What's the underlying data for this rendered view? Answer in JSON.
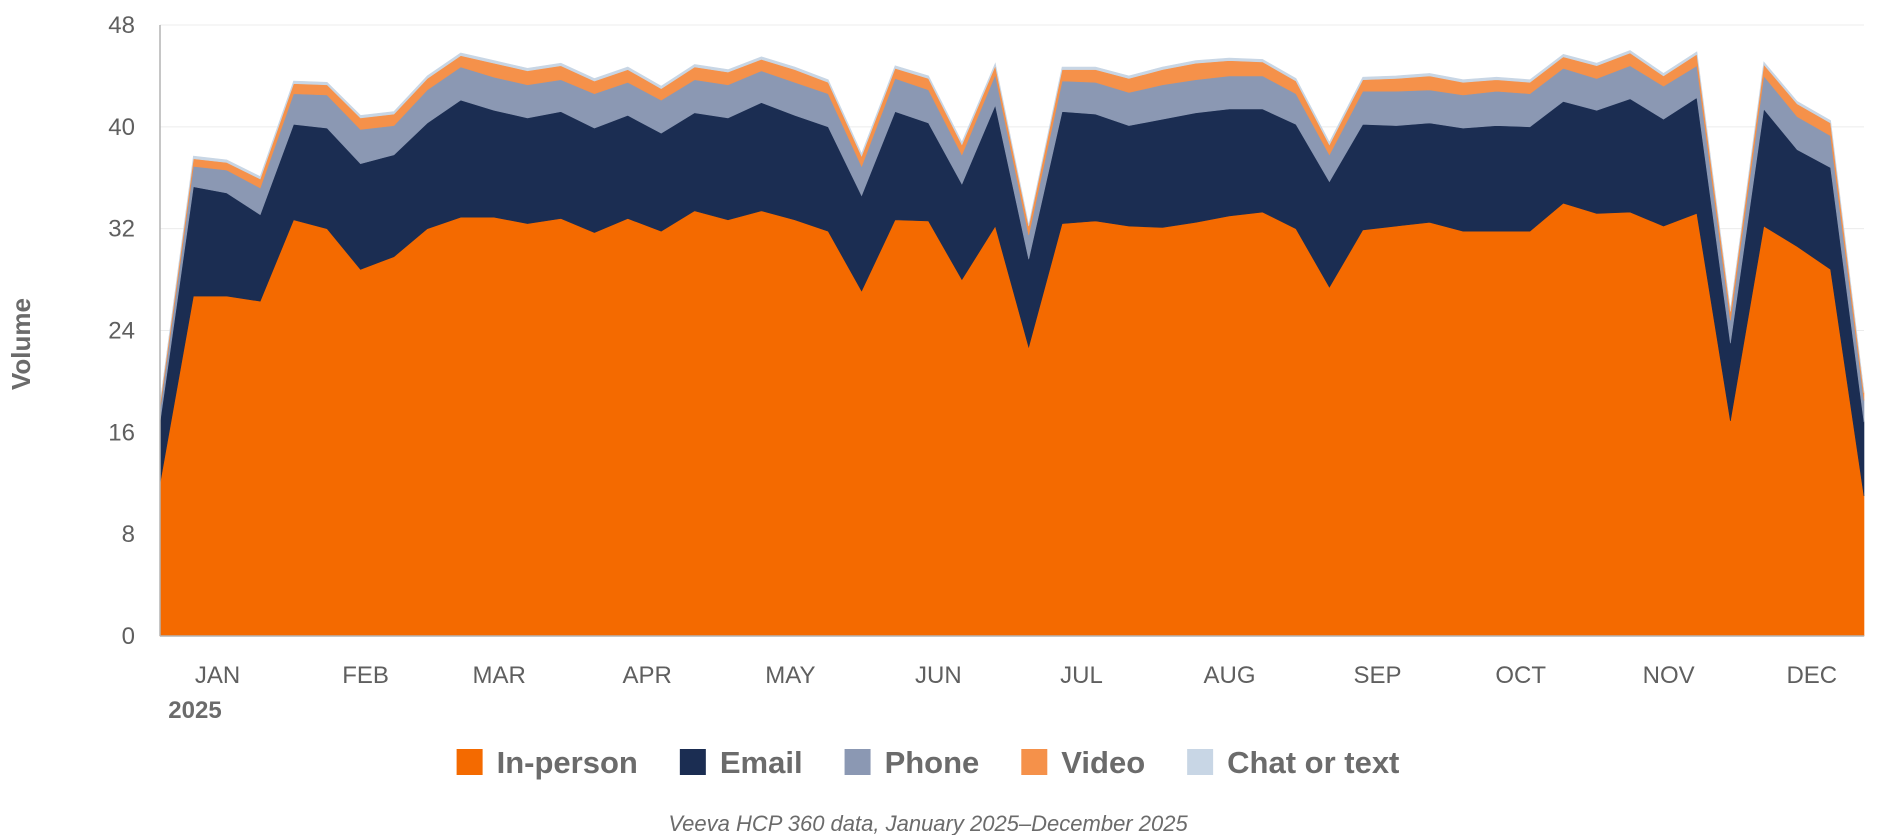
{
  "chart_data": {
    "type": "area",
    "stacked": true,
    "ylabel": "Volume",
    "xlabel": "",
    "ylim": [
      0,
      48
    ],
    "yticks": [
      0,
      8,
      16,
      24,
      32,
      40,
      48
    ],
    "grid": "horizontal",
    "legend_position": "bottom",
    "month_labels": [
      "JAN",
      "FEB",
      "MAR",
      "APR",
      "MAY",
      "JUN",
      "JUL",
      "AUG",
      "SEP",
      "OCT",
      "NOV",
      "DEC"
    ],
    "year_label": "2025",
    "x": [
      "2025-01-01",
      "2025-01-08",
      "2025-01-15",
      "2025-01-22",
      "2025-01-29",
      "2025-02-05",
      "2025-02-12",
      "2025-02-19",
      "2025-02-26",
      "2025-03-05",
      "2025-03-12",
      "2025-03-19",
      "2025-03-26",
      "2025-04-02",
      "2025-04-09",
      "2025-04-16",
      "2025-04-23",
      "2025-04-30",
      "2025-05-07",
      "2025-05-14",
      "2025-05-21",
      "2025-05-28",
      "2025-06-04",
      "2025-06-11",
      "2025-06-18",
      "2025-06-25",
      "2025-07-02",
      "2025-07-09",
      "2025-07-16",
      "2025-07-23",
      "2025-07-30",
      "2025-08-06",
      "2025-08-13",
      "2025-08-20",
      "2025-08-27",
      "2025-09-03",
      "2025-09-10",
      "2025-09-17",
      "2025-09-24",
      "2025-10-01",
      "2025-10-08",
      "2025-10-15",
      "2025-10-22",
      "2025-10-29",
      "2025-11-05",
      "2025-11-12",
      "2025-11-19",
      "2025-11-26",
      "2025-12-03",
      "2025-12-10",
      "2025-12-17",
      "2025-12-24"
    ],
    "series": [
      {
        "name": "In-person",
        "color": "#F46A00",
        "values": [
          12,
          26.7,
          26.7,
          26.3,
          32.7,
          32,
          28.8,
          29.8,
          32,
          32.9,
          32.9,
          32.4,
          32.8,
          31.7,
          32.8,
          31.8,
          33.4,
          32.7,
          33.4,
          32.7,
          31.8,
          27.1,
          32.7,
          32.6,
          28,
          32.2,
          22.7,
          32.4,
          32.6,
          32.2,
          32.1,
          32.5,
          33,
          33.3,
          32,
          27.4,
          31.9,
          32.2,
          32.5,
          31.8,
          31.8,
          31.8,
          34,
          33.2,
          33.3,
          32.2,
          33.2,
          16.9,
          32.2,
          30.6,
          28.8,
          11
        ]
      },
      {
        "name": "Email",
        "color": "#1B2D52",
        "values": [
          4.8,
          8.6,
          8.1,
          6.8,
          7.5,
          7.9,
          8.3,
          8,
          8.3,
          9.2,
          8.4,
          8.3,
          8.4,
          8.2,
          8.1,
          7.7,
          7.7,
          8,
          8.5,
          8.2,
          8.2,
          7.5,
          8.5,
          7.7,
          7.5,
          9.5,
          6.9,
          8.8,
          8.4,
          7.9,
          8.5,
          8.6,
          8.4,
          8.1,
          8.2,
          8.3,
          8.3,
          7.9,
          7.8,
          8.1,
          8.3,
          8.2,
          8,
          8.1,
          8.9,
          8.4,
          9.1,
          6.1,
          9.2,
          7.6,
          8,
          5.8
        ]
      },
      {
        "name": "Phone",
        "color": "#8B98B3",
        "values": [
          1,
          1.6,
          1.8,
          2.1,
          2.4,
          2.6,
          2.7,
          2.3,
          2.6,
          2.6,
          2.6,
          2.6,
          2.5,
          2.7,
          2.6,
          2.6,
          2.6,
          2.6,
          2.5,
          2.6,
          2.6,
          2.3,
          2.6,
          2.6,
          2.3,
          2.4,
          1.9,
          2.4,
          2.5,
          2.6,
          2.7,
          2.6,
          2.6,
          2.6,
          2.4,
          2.1,
          2.6,
          2.7,
          2.6,
          2.6,
          2.7,
          2.6,
          2.6,
          2.5,
          2.6,
          2.6,
          2.5,
          1.8,
          2.6,
          2.6,
          2.5,
          1.7
        ]
      },
      {
        "name": "Video",
        "color": "#F5914A",
        "values": [
          0.4,
          0.6,
          0.6,
          0.7,
          0.8,
          0.8,
          0.9,
          0.9,
          0.9,
          0.9,
          1.1,
          1.1,
          1.1,
          1,
          1,
          0.9,
          1,
          1,
          0.9,
          1,
          0.9,
          0.8,
          0.8,
          0.9,
          0.8,
          0.7,
          0.7,
          0.9,
          1,
          1.1,
          1.2,
          1.3,
          1.2,
          1.1,
          1,
          0.8,
          0.9,
          1,
          1.1,
          1,
          0.9,
          0.9,
          0.9,
          1,
          1,
          0.8,
          0.9,
          0.7,
          0.9,
          1,
          1,
          0.6
        ]
      },
      {
        "name": "Chat or text",
        "color": "#C8D6E5",
        "values": [
          0.1,
          0.2,
          0.2,
          0.2,
          0.2,
          0.2,
          0.2,
          0.2,
          0.2,
          0.2,
          0.2,
          0.2,
          0.2,
          0.2,
          0.2,
          0.2,
          0.2,
          0.2,
          0.2,
          0.2,
          0.2,
          0.2,
          0.2,
          0.2,
          0.2,
          0.2,
          0.1,
          0.2,
          0.2,
          0.2,
          0.2,
          0.2,
          0.2,
          0.2,
          0.2,
          0.2,
          0.2,
          0.2,
          0.2,
          0.2,
          0.2,
          0.2,
          0.2,
          0.2,
          0.2,
          0.2,
          0.2,
          0.1,
          0.2,
          0.2,
          0.2,
          0.1
        ]
      }
    ]
  },
  "footer": {
    "source_note": "Veeva HCP 360 data, January 2025–December 2025"
  },
  "colors": {
    "gridline": "#ececec",
    "axis": "#b3b3b3"
  }
}
